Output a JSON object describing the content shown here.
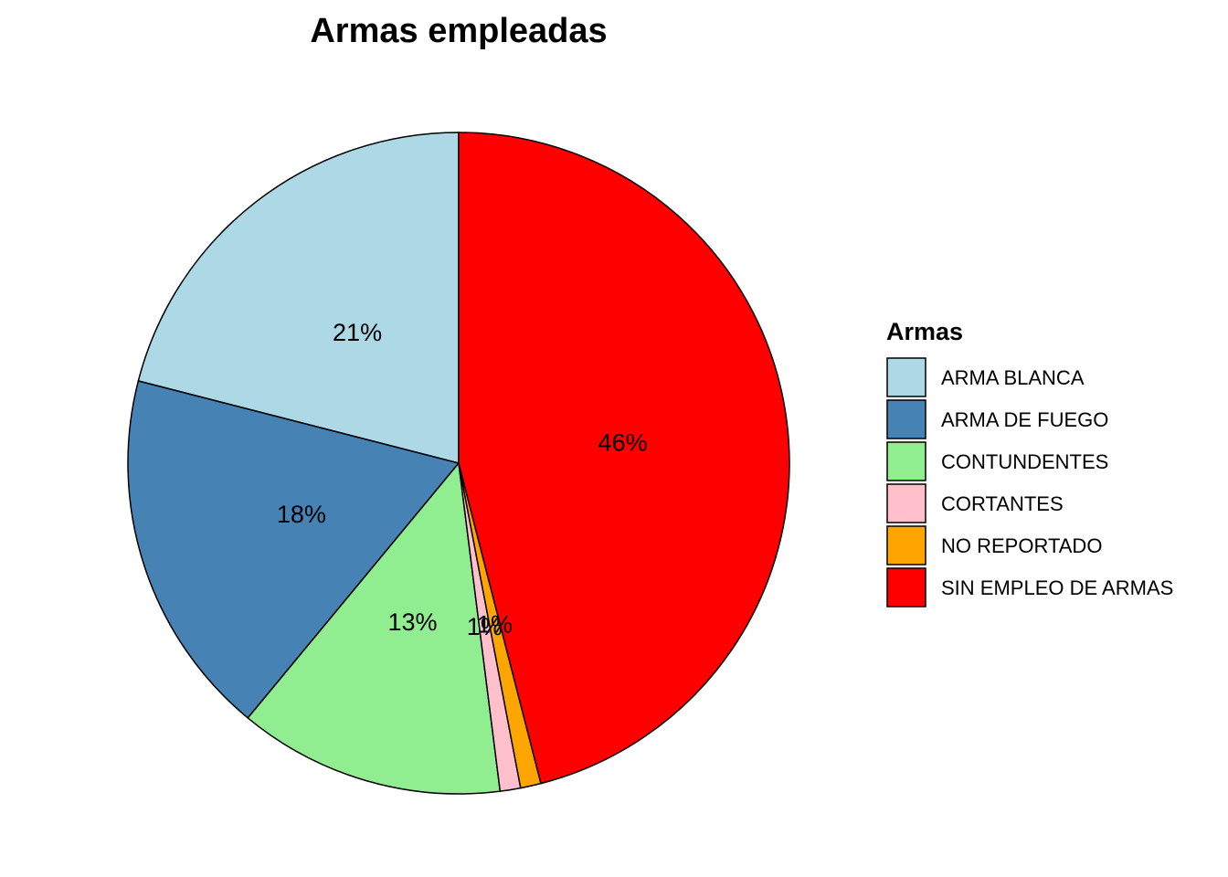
{
  "chart_data": {
    "type": "pie",
    "title": "Armas empleadas",
    "legend_title": "Armas",
    "legend_position": "right",
    "slices": [
      {
        "label": "ARMA BLANCA",
        "value": 21,
        "display": "21%",
        "color": "#ADD8E6"
      },
      {
        "label": "ARMA DE FUEGO",
        "value": 18,
        "display": "18%",
        "color": "#4682B4"
      },
      {
        "label": "CONTUNDENTES",
        "value": 13,
        "display": "13%",
        "color": "#90EE90"
      },
      {
        "label": "CORTANTES",
        "value": 1,
        "display": "1%",
        "color": "#FFC0CB"
      },
      {
        "label": "NO REPORTADO",
        "value": 1,
        "display": "1%",
        "color": "#FFA500"
      },
      {
        "label": "SIN EMPLEO DE ARMAS",
        "value": 46,
        "display": "46%",
        "color": "#FF0000"
      }
    ]
  }
}
